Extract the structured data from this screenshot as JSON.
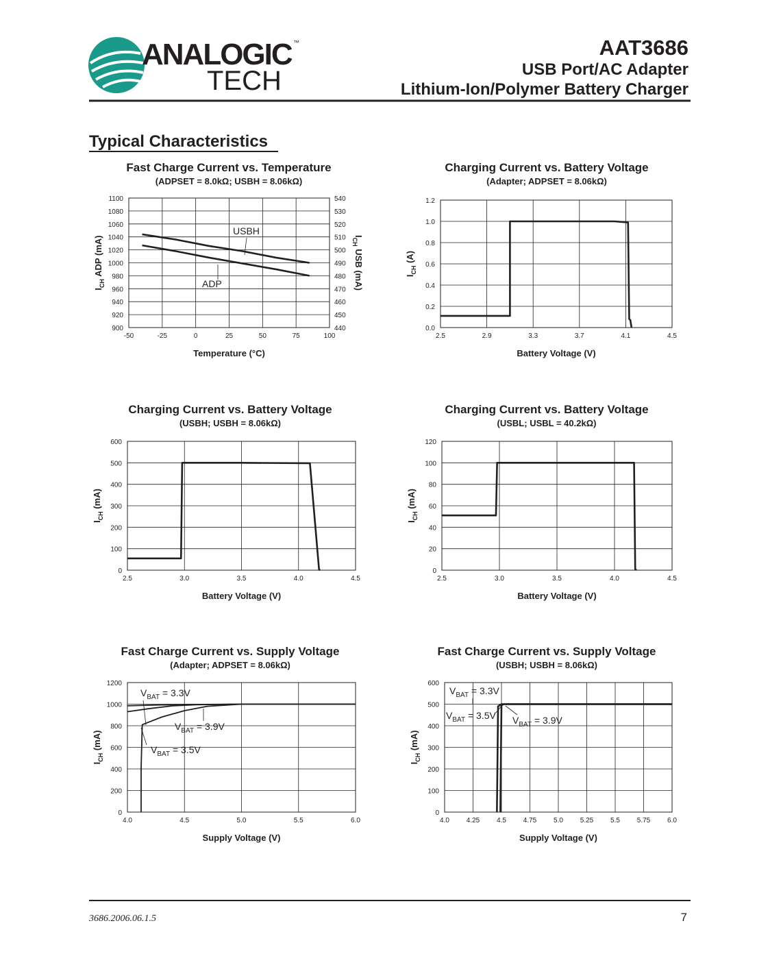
{
  "header": {
    "logo": {
      "word1": "ANALOGIC",
      "word2": "TECH",
      "mark": "™"
    },
    "part": "AAT3686",
    "line1": "USB Port/AC Adapter",
    "line2": "Lithium-Ion/Polymer Battery Charger"
  },
  "section_title": "Typical Characteristics",
  "chart_data": [
    {
      "type": "line",
      "title": "Fast Charge Current vs. Temperature",
      "subtitle": "(ADPSET = 8.0kΩ; USBH = 8.06kΩ)",
      "xlabel": "Temperature (°C)",
      "ylabel": [
        "I",
        "CH",
        " ADP (mA)"
      ],
      "y2label": [
        "I",
        "CH",
        " USB (mA)"
      ],
      "xlim": [
        -50,
        100
      ],
      "xticks": [
        -50,
        -25,
        0,
        25,
        50,
        75,
        100
      ],
      "ylim": [
        900,
        1100
      ],
      "yticks": [
        900,
        920,
        940,
        960,
        980,
        1000,
        1020,
        1040,
        1060,
        1080,
        1100
      ],
      "y2lim": [
        440,
        540
      ],
      "y2ticks": [
        440,
        450,
        460,
        470,
        480,
        490,
        500,
        510,
        520,
        530,
        540
      ],
      "grid": true,
      "series": [
        {
          "color": "#231f20",
          "axis": "y2",
          "x": [
            -40,
            -15,
            10,
            35,
            60,
            85
          ],
          "values": [
            512,
            508,
            503,
            499,
            494,
            490
          ]
        },
        {
          "color": "#231f20",
          "x": [
            -40,
            -15,
            10,
            35,
            60,
            85
          ],
          "values": [
            1027,
            1018,
            1008,
            999,
            990,
            980
          ]
        }
      ],
      "annotations": [
        [
          "USBH"
        ],
        [
          "ADP"
        ]
      ]
    },
    {
      "type": "line",
      "title": "Charging Current vs. Battery Voltage",
      "subtitle": "(Adapter; ADPSET = 8.06kΩ)",
      "xlabel": "Battery Voltage (V)",
      "ylabel": [
        "I",
        "CH",
        " (A)"
      ],
      "xlim": [
        2.5,
        4.5
      ],
      "xticks": [
        2.5,
        2.9,
        3.3,
        3.7,
        4.1,
        4.5
      ],
      "ylim": [
        0,
        1.2
      ],
      "yticks": [
        {
          "value": 0,
          "label": "0.0"
        },
        0.2,
        0.4,
        0.6,
        0.8,
        {
          "value": 1,
          "label": "1.0"
        },
        1.2
      ],
      "grid": true,
      "series": [
        {
          "color": "#231f20",
          "x": [
            2.5,
            3.1,
            3.1,
            3.5,
            4.0,
            4.12,
            4.13,
            4.14,
            4.15
          ],
          "values": [
            0.11,
            0.11,
            1.0,
            1.0,
            1.0,
            0.99,
            0.08,
            0.07,
            0
          ]
        }
      ],
      "annotations": []
    },
    {
      "type": "line",
      "title": "Charging Current vs. Battery Voltage",
      "subtitle": "(USBH; USBH = 8.06kΩ)",
      "xlabel": "Battery Voltage (V)",
      "ylabel": [
        "I",
        "CH",
        " (mA)"
      ],
      "xlim": [
        2.5,
        4.5
      ],
      "xticks": [
        2.5,
        {
          "value": 3,
          "label": "3.0"
        },
        3.5,
        {
          "value": 4,
          "label": "4.0"
        },
        4.5
      ],
      "ylim": [
        0,
        600
      ],
      "yticks": [
        0,
        100,
        200,
        300,
        400,
        500,
        600
      ],
      "grid": true,
      "series": [
        {
          "color": "#231f20",
          "x": [
            2.5,
            2.97,
            2.98,
            3.5,
            4.1,
            4.18,
            4.19
          ],
          "values": [
            55,
            55,
            500,
            500,
            498,
            3,
            0
          ]
        }
      ],
      "annotations": []
    },
    {
      "type": "line",
      "title": "Charging Current vs. Battery Voltage",
      "subtitle": "(USBL; USBL = 40.2kΩ)",
      "xlabel": "Battery Voltage (V)",
      "ylabel": [
        "I",
        "CH",
        " (mA)"
      ],
      "xlim": [
        2.5,
        4.5
      ],
      "xticks": [
        2.5,
        {
          "value": 3,
          "label": "3.0"
        },
        3.5,
        {
          "value": 4,
          "label": "4.0"
        },
        4.5
      ],
      "ylim": [
        0,
        120
      ],
      "yticks": [
        0,
        20,
        40,
        60,
        80,
        100,
        120
      ],
      "grid": true,
      "series": [
        {
          "color": "#231f20",
          "x": [
            2.5,
            2.97,
            2.98,
            3.5,
            4.17,
            4.18,
            4.19
          ],
          "values": [
            51,
            51,
            100,
            100,
            100,
            1,
            0
          ]
        }
      ],
      "annotations": []
    },
    {
      "type": "line",
      "title": "Fast Charge Current vs. Supply Voltage",
      "subtitle": "(Adapter; ADPSET = 8.06kΩ)",
      "xlabel": "Supply Voltage (V)",
      "ylabel": [
        "I",
        "CH",
        " (mA)"
      ],
      "xlim": [
        4,
        6
      ],
      "xticks": [
        {
          "value": 4,
          "label": "4.0"
        },
        4.5,
        {
          "value": 5,
          "label": "5.0"
        },
        5.5,
        {
          "value": 6,
          "label": "6.0"
        }
      ],
      "ylim": [
        0,
        1200
      ],
      "yticks": [
        0,
        200,
        400,
        600,
        800,
        1000,
        1200
      ],
      "grid": true,
      "series": [
        {
          "color": "#231f20",
          "x": [
            4.0,
            4.25,
            4.5,
            5.0,
            6.0
          ],
          "values": [
            985,
            992,
            996,
            1000,
            1000
          ]
        },
        {
          "color": "#231f20",
          "x": [
            4.0,
            4.2,
            4.4,
            4.6,
            5.0,
            6.0
          ],
          "values": [
            930,
            960,
            985,
            995,
            1000,
            1000
          ]
        },
        {
          "color": "#231f20",
          "x": [
            4.12,
            4.12,
            4.13,
            4.3,
            4.5,
            4.7,
            5.0,
            6.0
          ],
          "values": [
            0,
            400,
            810,
            880,
            940,
            980,
            1000,
            1000
          ]
        }
      ],
      "annotations": [
        [
          "V",
          "BAT",
          " = 3.3V"
        ],
        [
          "V",
          "BAT",
          " = 3.9V"
        ],
        [
          "V",
          "BAT",
          " = 3.5V"
        ]
      ]
    },
    {
      "type": "line",
      "title": "Fast Charge Current vs. Supply Voltage",
      "subtitle": "(USBH; USBH = 8.06kΩ)",
      "xlabel": "Supply Voltage (V)",
      "ylabel": [
        "I",
        "CH",
        " (mA)"
      ],
      "xlim": [
        4,
        6
      ],
      "xticks": [
        {
          "value": 4,
          "label": "4.0"
        },
        4.25,
        4.5,
        4.75,
        {
          "value": 5,
          "label": "5.0"
        },
        5.25,
        5.5,
        5.75,
        {
          "value": 6,
          "label": "6.0"
        }
      ],
      "ylim": [
        0,
        600
      ],
      "yticks": [
        0,
        100,
        200,
        300,
        400,
        500,
        600
      ],
      "grid": true,
      "series": [
        {
          "color": "#231f20",
          "x": [
            4.46,
            4.47,
            4.5,
            6.0
          ],
          "values": [
            0,
            490,
            500,
            500
          ]
        },
        {
          "color": "#231f20",
          "x": [
            4.49,
            4.5,
            4.52,
            6.0
          ],
          "values": [
            0,
            495,
            500,
            500
          ]
        }
      ],
      "annotations": [
        [
          "V",
          "BAT",
          " = 3.3V"
        ],
        [
          "V",
          "BAT",
          " = 3.5V"
        ],
        [
          "V",
          "BAT",
          " = 3.9V"
        ]
      ]
    }
  ],
  "footer": {
    "doc": "3686.2006.06.1.5",
    "page": "7"
  }
}
